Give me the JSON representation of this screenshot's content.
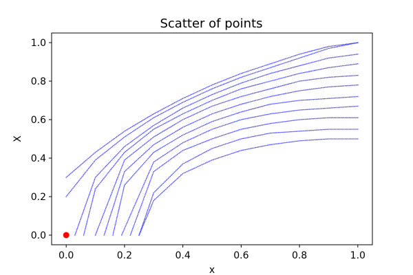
{
  "chart_data": {
    "type": "scatter",
    "title": "Scatter of points",
    "xlabel": "x",
    "ylabel": "X",
    "xlim": [
      -0.05,
      1.05
    ],
    "ylim": [
      -0.05,
      1.05
    ],
    "xticks": [
      "0.0",
      "0.2",
      "0.4",
      "0.6",
      "0.8",
      "1.0"
    ],
    "yticks": [
      "0.0",
      "0.2",
      "0.4",
      "0.6",
      "0.8",
      "1.0"
    ],
    "grid": false,
    "colors": {
      "series": "#0000ff",
      "highlight": "#ff0000"
    },
    "series": [
      {
        "x": [
          0.0,
          0.1,
          0.2,
          0.3,
          0.4,
          0.5,
          0.6,
          0.7,
          0.8,
          0.9,
          1.0
        ],
        "y": [
          0.3,
          0.43,
          0.54,
          0.63,
          0.71,
          0.78,
          0.84,
          0.89,
          0.94,
          0.98,
          1.0
        ]
      },
      {
        "x": [
          0.0,
          0.1,
          0.2,
          0.3,
          0.4,
          0.5,
          0.6,
          0.7,
          0.8,
          0.9,
          1.0
        ],
        "y": [
          0.2,
          0.39,
          0.51,
          0.61,
          0.69,
          0.76,
          0.82,
          0.87,
          0.92,
          0.97,
          1.0
        ]
      },
      {
        "x": [
          0.03,
          0.1,
          0.2,
          0.3,
          0.4,
          0.5,
          0.6,
          0.7,
          0.8,
          0.9,
          1.0
        ],
        "y": [
          0.0,
          0.3,
          0.46,
          0.57,
          0.66,
          0.73,
          0.79,
          0.84,
          0.88,
          0.92,
          0.94
        ]
      },
      {
        "x": [
          0.06,
          0.1,
          0.2,
          0.3,
          0.4,
          0.5,
          0.6,
          0.7,
          0.8,
          0.9,
          1.0
        ],
        "y": [
          0.0,
          0.24,
          0.43,
          0.55,
          0.63,
          0.7,
          0.76,
          0.8,
          0.84,
          0.87,
          0.89
        ]
      },
      {
        "x": [
          0.1,
          0.2,
          0.3,
          0.4,
          0.5,
          0.6,
          0.7,
          0.8,
          0.9,
          1.0
        ],
        "y": [
          0.0,
          0.39,
          0.51,
          0.6,
          0.67,
          0.72,
          0.76,
          0.8,
          0.82,
          0.83
        ]
      },
      {
        "x": [
          0.13,
          0.2,
          0.3,
          0.4,
          0.5,
          0.6,
          0.7,
          0.8,
          0.9,
          1.0
        ],
        "y": [
          0.0,
          0.33,
          0.47,
          0.56,
          0.63,
          0.68,
          0.72,
          0.75,
          0.77,
          0.78
        ]
      },
      {
        "x": [
          0.16,
          0.2,
          0.3,
          0.4,
          0.5,
          0.6,
          0.7,
          0.8,
          0.9,
          1.0
        ],
        "y": [
          0.0,
          0.26,
          0.43,
          0.52,
          0.59,
          0.64,
          0.68,
          0.7,
          0.71,
          0.72
        ]
      },
      {
        "x": [
          0.19,
          0.3,
          0.4,
          0.5,
          0.6,
          0.7,
          0.8,
          0.9,
          1.0
        ],
        "y": [
          0.0,
          0.38,
          0.48,
          0.55,
          0.6,
          0.63,
          0.65,
          0.66,
          0.67
        ]
      },
      {
        "x": [
          0.22,
          0.3,
          0.4,
          0.5,
          0.6,
          0.7,
          0.8,
          0.9,
          1.0
        ],
        "y": [
          0.0,
          0.33,
          0.44,
          0.5,
          0.55,
          0.58,
          0.6,
          0.61,
          0.61
        ]
      },
      {
        "x": [
          0.25,
          0.3,
          0.4,
          0.5,
          0.6,
          0.7,
          0.8,
          0.9,
          1.0
        ],
        "y": [
          0.0,
          0.22,
          0.37,
          0.45,
          0.5,
          0.53,
          0.54,
          0.55,
          0.55
        ]
      },
      {
        "x": [
          0.25,
          0.3,
          0.4,
          0.5,
          0.6,
          0.7,
          0.8,
          0.9,
          1.0
        ],
        "y": [
          0.0,
          0.18,
          0.32,
          0.39,
          0.44,
          0.47,
          0.49,
          0.5,
          0.5
        ]
      }
    ],
    "highlight_point": {
      "x": 0.0,
      "y": 0.0
    }
  }
}
